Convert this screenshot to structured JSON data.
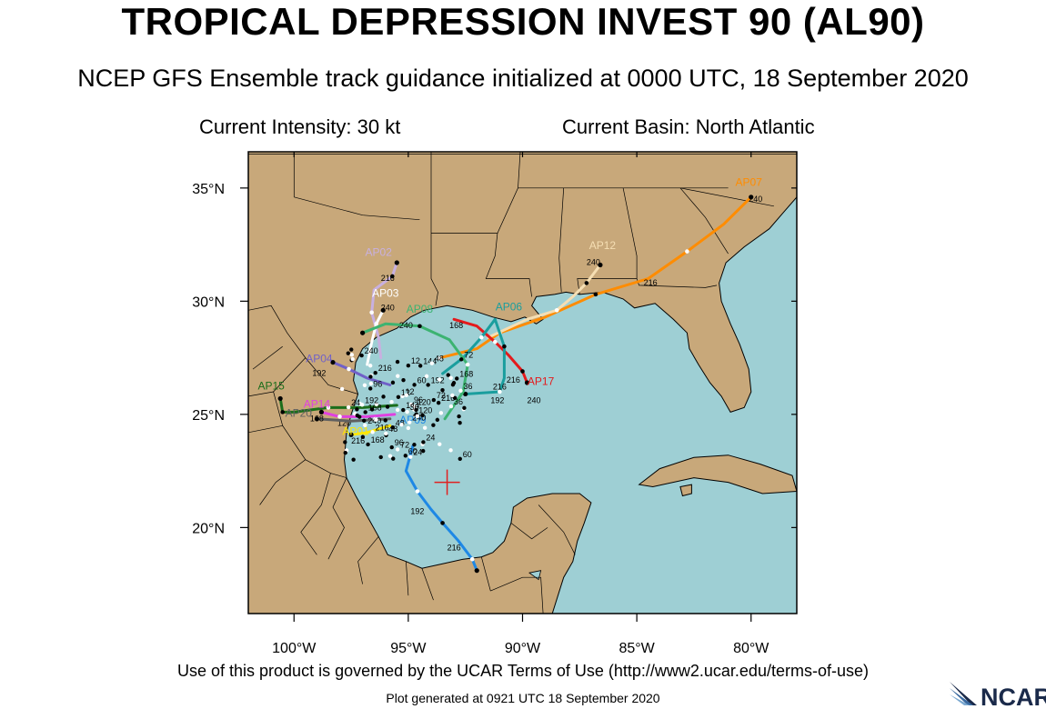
{
  "header": {
    "title": "TROPICAL DEPRESSION INVEST 90 (AL90)",
    "subtitle": "NCEP GFS Ensemble track guidance initialized at 0000 UTC, 18 September 2020",
    "current_intensity": "Current Intensity: 30 kt",
    "current_basin": "Current Basin: North Atlantic"
  },
  "footer": {
    "terms": "Use of this product is governed by the UCAR Terms of Use (http://www2.ucar.edu/terms-of-use)",
    "generated": "Plot generated at 0921 UTC   18 September 2020",
    "logo_text": "NCAR"
  },
  "colors": {
    "land": "#c8a87a",
    "water": "#9ecfd4",
    "border": "#000000",
    "storm_marker": "#e02020"
  },
  "map": {
    "lon_range": [
      -102,
      -78
    ],
    "lat_range": [
      16.2,
      36.6
    ],
    "lon_ticks": [
      {
        "value": -100,
        "label": "100°W"
      },
      {
        "value": -95,
        "label": "95°W"
      },
      {
        "value": -90,
        "label": "90°W"
      },
      {
        "value": -85,
        "label": "85°W"
      },
      {
        "value": -80,
        "label": "80°W"
      }
    ],
    "lat_ticks": [
      {
        "value": 20,
        "label": "20°N"
      },
      {
        "value": 25,
        "label": "25°N"
      },
      {
        "value": 30,
        "label": "30°N"
      },
      {
        "value": 35,
        "label": "35°N"
      }
    ],
    "storm_position": {
      "lon": -93.3,
      "lat": 22.0
    }
  },
  "tracks": [
    {
      "id": "AP07",
      "color": "#ff8c00",
      "label_pos": {
        "lon": -80.1,
        "lat": 35.1
      },
      "points": [
        [
          -93.6,
          27.5
        ],
        [
          -92.0,
          27.9
        ],
        [
          -91.0,
          28.6
        ],
        [
          -89.0,
          29.3
        ],
        [
          -86.8,
          30.3
        ],
        [
          -84.5,
          31.0
        ],
        [
          -82.8,
          32.2
        ],
        [
          -81.2,
          33.4
        ],
        [
          -80.0,
          34.6
        ]
      ],
      "fhr": [
        {
          "text": "216",
          "lon": -84.4,
          "lat": 30.7
        },
        {
          "text": "240",
          "lon": -79.8,
          "lat": 34.4
        }
      ]
    },
    {
      "id": "AP12",
      "color": "#f5deb3",
      "label_pos": {
        "lon": -86.5,
        "lat": 32.3
      },
      "points": [
        [
          -91.5,
          28.4
        ],
        [
          -89.8,
          29.2
        ],
        [
          -88.5,
          29.6
        ],
        [
          -87.8,
          30.2
        ],
        [
          -87.2,
          30.8
        ],
        [
          -86.6,
          31.6
        ]
      ],
      "fhr": [
        {
          "text": "240",
          "lon": -86.9,
          "lat": 31.6
        }
      ]
    },
    {
      "id": "AP17",
      "color": "#e41a1c",
      "label_pos": {
        "lon": -89.2,
        "lat": 26.3
      },
      "points": [
        [
          -93.0,
          29.2
        ],
        [
          -92.0,
          28.9
        ],
        [
          -91.2,
          28.2
        ],
        [
          -90.6,
          27.6
        ],
        [
          -90.0,
          26.9
        ],
        [
          -89.8,
          26.4
        ]
      ],
      "fhr": [
        {
          "text": "216",
          "lon": -90.4,
          "lat": 26.4
        },
        {
          "text": "240",
          "lon": -89.5,
          "lat": 25.5
        }
      ]
    },
    {
      "id": "AP06",
      "color": "#1a9e9e",
      "label_pos": {
        "lon": -90.6,
        "lat": 29.6
      },
      "points": [
        [
          -93.5,
          26.8
        ],
        [
          -92.6,
          27.5
        ],
        [
          -91.8,
          28.4
        ],
        [
          -91.2,
          29.2
        ],
        [
          -90.8,
          28.0
        ],
        [
          -90.8,
          26.6
        ],
        [
          -91.0,
          26.0
        ],
        [
          -92.5,
          25.9
        ]
      ],
      "fhr": [
        {
          "text": "216",
          "lon": -91.0,
          "lat": 26.1
        },
        {
          "text": "192",
          "lon": -91.1,
          "lat": 25.5
        }
      ]
    },
    {
      "id": "AP02",
      "color": "#c8b0e0",
      "label_pos": {
        "lon": -96.3,
        "lat": 32.0
      },
      "points": [
        [
          -96.2,
          27.5
        ],
        [
          -96.3,
          28.4
        ],
        [
          -96.6,
          29.5
        ],
        [
          -96.5,
          30.5
        ],
        [
          -95.7,
          31.1
        ],
        [
          -95.5,
          31.7
        ]
      ],
      "fhr": [
        {
          "text": "216",
          "lon": -95.9,
          "lat": 30.9
        }
      ]
    },
    {
      "id": "AP03",
      "color": "#ffffff",
      "label_pos": {
        "lon": -96.0,
        "lat": 30.2
      },
      "points": [
        [
          -96.8,
          27.2
        ],
        [
          -96.6,
          28.2
        ],
        [
          -96.4,
          29.0
        ],
        [
          -96.1,
          29.6
        ]
      ],
      "fhr": [
        {
          "text": "240",
          "lon": -95.9,
          "lat": 29.6
        }
      ]
    },
    {
      "id": "AP09",
      "color": "#1e88e5",
      "label_pos": {
        "lon": -94.8,
        "lat": 24.6
      },
      "points": [
        [
          -94.8,
          23.6
        ],
        [
          -95.1,
          22.5
        ],
        [
          -94.6,
          21.6
        ],
        [
          -94.0,
          20.8
        ],
        [
          -93.5,
          20.2
        ],
        [
          -92.8,
          19.4
        ],
        [
          -92.2,
          18.6
        ],
        [
          -92.0,
          18.1
        ]
      ],
      "fhr": [
        {
          "text": "192",
          "lon": -94.6,
          "lat": 20.6
        },
        {
          "text": "216",
          "lon": -93.0,
          "lat": 19.0
        }
      ]
    },
    {
      "id": "AP15",
      "color": "#1b6e1b",
      "label_pos": {
        "lon": -101.0,
        "lat": 26.1
      },
      "points": [
        [
          -95.5,
          25.4
        ],
        [
          -97.0,
          25.3
        ],
        [
          -98.5,
          25.3
        ],
        [
          -100.0,
          25.1
        ],
        [
          -100.5,
          25.1
        ],
        [
          -100.6,
          25.7
        ]
      ],
      "fhr": []
    },
    {
      "id": "AP14",
      "color": "#e040e0",
      "label_pos": {
        "lon": -99.0,
        "lat": 25.3
      },
      "points": [
        [
          -95.6,
          25.0
        ],
        [
          -96.8,
          24.9
        ],
        [
          -98.0,
          24.9
        ],
        [
          -98.8,
          25.1
        ]
      ],
      "fhr": [
        {
          "text": "120",
          "lon": -97.8,
          "lat": 24.5
        }
      ]
    },
    {
      "id": "AP04",
      "color": "#7060c8",
      "label_pos": {
        "lon": -98.9,
        "lat": 27.3
      },
      "points": [
        [
          -95.8,
          26.3
        ],
        [
          -96.8,
          26.6
        ],
        [
          -97.6,
          27.0
        ],
        [
          -98.3,
          27.3
        ]
      ],
      "fhr": [
        {
          "text": "192",
          "lon": -98.9,
          "lat": 26.7
        }
      ]
    },
    {
      "id": "AP20",
      "color": "#606060",
      "label_pos": {
        "lon": -99.8,
        "lat": 24.9
      },
      "points": [
        [
          -95.8,
          24.8
        ],
        [
          -97.5,
          24.7
        ],
        [
          -99.0,
          24.8
        ]
      ],
      "fhr": [
        {
          "text": "168",
          "lon": -99.0,
          "lat": 24.7
        }
      ]
    },
    {
      "id": "AP01",
      "color": "#ffe600",
      "label_pos": {
        "lon": -97.3,
        "lat": 24.1
      },
      "points": [
        [
          -95.8,
          24.5
        ],
        [
          -96.8,
          24.2
        ],
        [
          -97.5,
          24.1
        ]
      ],
      "fhr": [
        {
          "text": "216",
          "lon": -97.2,
          "lat": 23.7
        }
      ]
    },
    {
      "id": "AP08",
      "color": "#3cb371",
      "label_pos": {
        "lon": -94.5,
        "lat": 29.5
      },
      "points": [
        [
          -93.4,
          24.8
        ],
        [
          -92.6,
          26.0
        ],
        [
          -92.4,
          27.2
        ],
        [
          -93.2,
          28.3
        ],
        [
          -94.5,
          28.9
        ],
        [
          -96.0,
          29.0
        ],
        [
          -97.0,
          28.6
        ]
      ],
      "fhr": [
        {
          "text": "240",
          "lon": -95.1,
          "lat": 28.8
        },
        {
          "text": "168",
          "lon": -92.9,
          "lat": 28.8
        }
      ]
    }
  ],
  "cluster_fhr": [
    "12",
    "24",
    "36",
    "48",
    "60",
    "72",
    "96",
    "120",
    "144",
    "168",
    "192",
    "216",
    "240"
  ]
}
